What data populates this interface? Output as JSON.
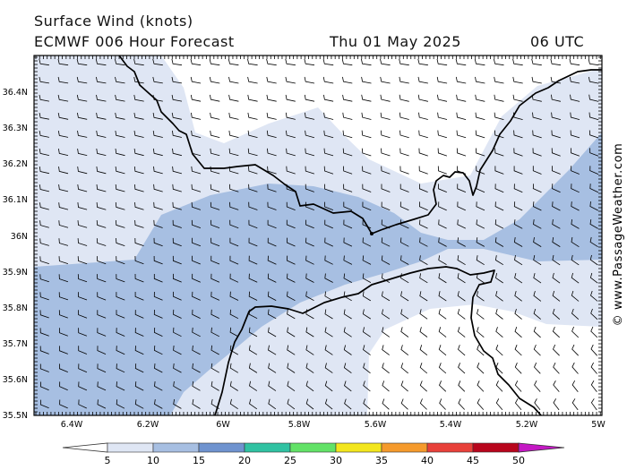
{
  "header": {
    "title": "Surface Wind (knots)",
    "model_line": "ECMWF 006 Hour Forecast",
    "date": "Thu 01 May 2025",
    "time": "06 UTC"
  },
  "credit": "© www.PassageWeather.com",
  "axes": {
    "lat_labels": [
      "36.4N",
      "36.3N",
      "36.2N",
      "36.1N",
      "36N",
      "35.9N",
      "35.8N",
      "35.7N",
      "35.6N",
      "35.5N"
    ],
    "lon_labels": [
      "6.4W",
      "6.2W",
      "6W",
      "5.8W",
      "5.6W",
      "5.4W",
      "5.2W",
      "5W"
    ]
  },
  "legend": {
    "labels": [
      "5",
      "10",
      "15",
      "20",
      "25",
      "30",
      "35",
      "40",
      "45",
      "50"
    ],
    "colors": [
      "#ffffff",
      "#dfe6f4",
      "#a7bfe2",
      "#6f93cf",
      "#30c2a2",
      "#62e267",
      "#f3e61d",
      "#f59a2c",
      "#e8413a",
      "#b8051c",
      "#c418c4"
    ]
  },
  "colors": {
    "calm": "#ffffff",
    "light": "#dfe6f4",
    "moderate": "#a7bfe2",
    "coast": "#000000",
    "barb": "#000000"
  }
}
